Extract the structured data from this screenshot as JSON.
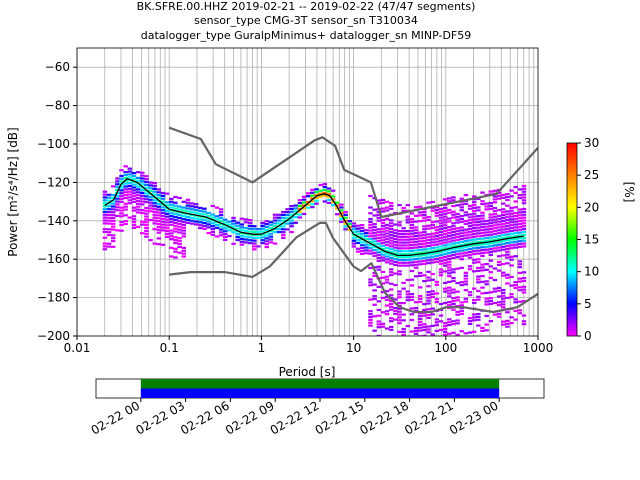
{
  "chart_data": {
    "type": "heatmap",
    "title_lines": [
      "BK.SFRE.00.HHZ   2019-02-21 -- 2019-02-22  (47/47 segments)",
      "sensor_type CMG-3T sensor_sn T310034",
      "datalogger_type GuralpMinimus+ datalogger_sn MINP-DF59"
    ],
    "xlabel": "Period [s]",
    "ylabel": "Power [m²/s⁴/Hz] [dB]",
    "x_scale": "log",
    "xlim": [
      0.01,
      1000
    ],
    "ylim": [
      -200,
      -50
    ],
    "x_ticks": [
      0.01,
      0.1,
      1,
      10,
      100,
      1000
    ],
    "x_tick_labels": [
      "0.01",
      "0.1",
      "1",
      "10",
      "100",
      "1000"
    ],
    "y_ticks": [
      -200,
      -180,
      -160,
      -140,
      -120,
      -100,
      -80,
      -60
    ],
    "y_tick_labels": [
      "−200",
      "−180",
      "−160",
      "−140",
      "−120",
      "−100",
      "−80",
      "−60"
    ],
    "grid": true,
    "colorbar": {
      "label": "[%]",
      "range": [
        0,
        30
      ],
      "ticks": [
        0,
        5,
        10,
        15,
        20,
        25,
        30
      ],
      "tick_labels": [
        "0",
        "5",
        "10",
        "15",
        "20",
        "25",
        "30"
      ],
      "colors": [
        "#ffffff",
        "#ff00ff",
        "#0000ff",
        "#00ffff",
        "#00ff00",
        "#ffff00",
        "#ff8000",
        "#ff0000"
      ]
    },
    "series": [
      {
        "role": "noise-model-high",
        "color": "#646464",
        "x": [
          0.1,
          0.22,
          0.32,
          0.8,
          3.8,
          4.6,
          6.3,
          7.9,
          15.4,
          20,
          354.8,
          10000
        ],
        "y": [
          -91.5,
          -97.4,
          -110.5,
          -120,
          -98,
          -96.5,
          -101,
          -113.5,
          -120,
          -138,
          -126,
          -48.5
        ]
      },
      {
        "role": "noise-model-low",
        "color": "#646464",
        "x": [
          0.1,
          0.17,
          0.4,
          0.8,
          1.24,
          2.4,
          4.3,
          5,
          6,
          10,
          12,
          15.6,
          21.9,
          31.6,
          45,
          70,
          101,
          154,
          328,
          600,
          1000
        ],
        "y": [
          -168,
          -166.7,
          -166.7,
          -169.2,
          -163.7,
          -148.6,
          -141.1,
          -141.1,
          -149,
          -163.8,
          -166.2,
          -162.1,
          -177.5,
          -185,
          -187.5,
          -187.5,
          -185,
          -185,
          -187.5,
          -185,
          -178
        ]
      },
      {
        "role": "mode",
        "color": "#000000",
        "x": [
          0.02,
          0.025,
          0.03,
          0.035,
          0.045,
          0.06,
          0.08,
          0.1,
          0.15,
          0.25,
          0.4,
          0.6,
          0.8,
          1,
          1.4,
          2,
          3,
          4,
          4.8,
          5.5,
          6.5,
          8,
          10,
          13,
          17,
          22,
          30,
          40,
          60,
          80,
          120,
          200,
          300,
          500,
          700
        ],
        "y": [
          -132,
          -129,
          -121,
          -118,
          -120,
          -125,
          -130,
          -134,
          -136,
          -138,
          -142,
          -146,
          -147,
          -147,
          -144,
          -139,
          -132,
          -127,
          -126,
          -127,
          -132,
          -140,
          -147,
          -150,
          -153,
          -156,
          -158,
          -158,
          -157,
          -156,
          -154,
          -152,
          -151,
          -149,
          -148
        ]
      }
    ],
    "time_coverage": {
      "tick_labels": [
        "02-22 00",
        "02-22 03",
        "02-22 06",
        "02-22 09",
        "02-22 12",
        "02-22 15",
        "02-22 18",
        "02-22 21",
        "02-23 00"
      ],
      "range_hours": [
        -3,
        27
      ],
      "data_start_hours": 0,
      "data_end_hours": 24,
      "colors": [
        "#008000",
        "#0000ff"
      ]
    }
  }
}
